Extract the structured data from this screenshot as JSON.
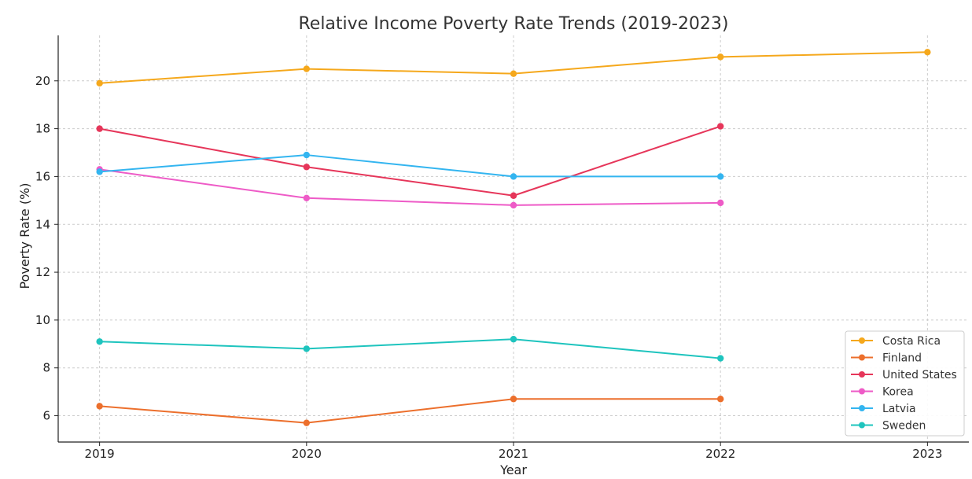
{
  "chart_data": {
    "type": "line",
    "title": "Relative Income Poverty Rate Trends (2019-2023)",
    "xlabel": "Year",
    "ylabel": "Poverty Rate (%)",
    "x": [
      2019,
      2020,
      2021,
      2022,
      2023
    ],
    "xlim": [
      2018.8,
      2023.2
    ],
    "ylim": [
      4.9,
      21.9
    ],
    "yticks": [
      6,
      8,
      10,
      12,
      14,
      16,
      18,
      20
    ],
    "grid": true,
    "legend_position": "bottom-right",
    "series": [
      {
        "name": "Costa Rica",
        "color": "#F5A81C",
        "values": [
          19.9,
          20.5,
          20.3,
          21.0,
          21.2
        ]
      },
      {
        "name": "Finland",
        "color": "#EC6F2C",
        "values": [
          6.4,
          5.7,
          6.7,
          6.7,
          null
        ]
      },
      {
        "name": "United States",
        "color": "#E6365A",
        "values": [
          18.0,
          16.4,
          15.2,
          18.1,
          null
        ]
      },
      {
        "name": "Korea",
        "color": "#EE5BC7",
        "values": [
          16.3,
          15.1,
          14.8,
          14.9,
          null
        ]
      },
      {
        "name": "Latvia",
        "color": "#33B5F0",
        "values": [
          16.2,
          16.9,
          16.0,
          16.0,
          null
        ]
      },
      {
        "name": "Sweden",
        "color": "#1EC4BE",
        "values": [
          9.1,
          8.8,
          9.2,
          8.4,
          null
        ]
      }
    ]
  }
}
